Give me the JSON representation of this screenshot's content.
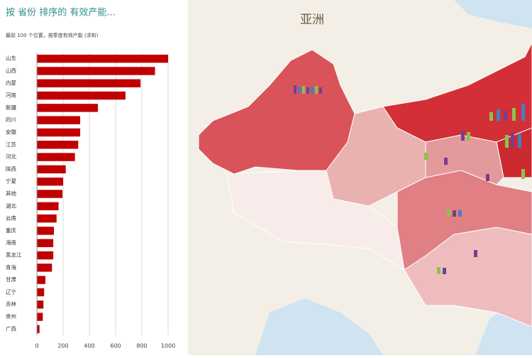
{
  "chart_data": {
    "type": "bar",
    "orientation": "horizontal",
    "title": "按 省份 排序的 有效产能...",
    "subtitle": "最前 100 个位置，按季度有效产能 (求和)",
    "categories": [
      "山东",
      "山西",
      "内蒙",
      "河南",
      "新疆",
      "四川",
      "安徽",
      "江苏",
      "河北",
      "陕西",
      "宁夏",
      "其他",
      "湖北",
      "云南",
      "重庆",
      "海南",
      "黑龙江",
      "青海",
      "甘肃",
      "辽宁",
      "吉林",
      "贵州",
      "广西"
    ],
    "values": [
      1000,
      900,
      790,
      675,
      465,
      330,
      330,
      315,
      290,
      220,
      200,
      195,
      165,
      150,
      130,
      125,
      125,
      115,
      65,
      55,
      50,
      45,
      20
    ],
    "color": "#c00000",
    "xlim": [
      0,
      1000
    ],
    "xticks": [
      0,
      200,
      400,
      600,
      800,
      1000
    ],
    "grid": true
  },
  "map": {
    "label": "亚洲"
  }
}
